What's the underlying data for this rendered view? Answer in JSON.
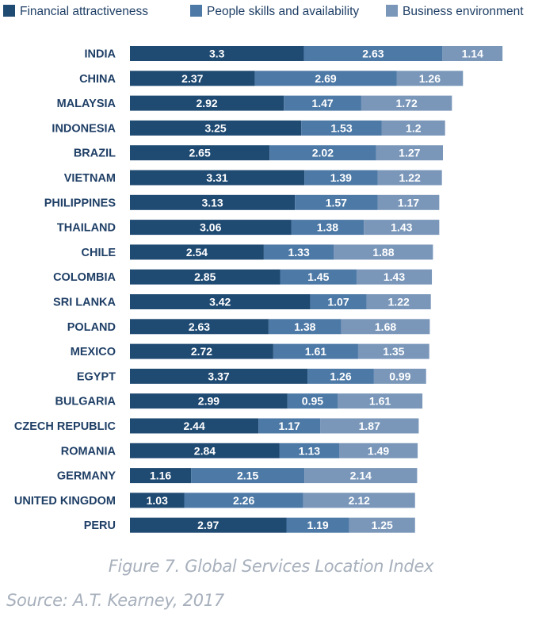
{
  "chart_data": {
    "type": "bar",
    "orientation": "horizontal",
    "stacked": true,
    "categories": [
      "INDIA",
      "CHINA",
      "MALAYSIA",
      "INDONESIA",
      "BRAZIL",
      "VIETNAM",
      "PHILIPPINES",
      "THAILAND",
      "CHILE",
      "COLOMBIA",
      "SRI LANKA",
      "POLAND",
      "MEXICO",
      "EGYPT",
      "BULGARIA",
      "CZECH REPUBLIC",
      "ROMANIA",
      "GERMANY",
      "UNITED KINGDOM",
      "PERU"
    ],
    "series": [
      {
        "name": "Financial attractiveness",
        "color": "#1f4a72",
        "values": [
          3.3,
          2.37,
          2.92,
          3.25,
          2.65,
          3.31,
          3.13,
          3.06,
          2.54,
          2.85,
          3.42,
          2.63,
          2.72,
          3.37,
          2.99,
          2.44,
          2.84,
          1.16,
          1.03,
          2.97
        ]
      },
      {
        "name": "People skills and availability",
        "color": "#4d79a6",
        "values": [
          2.63,
          2.69,
          1.47,
          1.53,
          2.02,
          1.39,
          1.57,
          1.38,
          1.33,
          1.45,
          1.07,
          1.38,
          1.61,
          1.26,
          0.95,
          1.17,
          1.13,
          2.15,
          2.26,
          1.19
        ]
      },
      {
        "name": "Business environment",
        "color": "#7a97ba",
        "values": [
          1.14,
          1.26,
          1.72,
          1.2,
          1.27,
          1.22,
          1.17,
          1.43,
          1.88,
          1.43,
          1.22,
          1.68,
          1.35,
          0.99,
          1.61,
          1.87,
          1.49,
          2.14,
          2.12,
          1.25
        ]
      }
    ],
    "title": "",
    "xlabel": "",
    "ylabel": "",
    "grid": false,
    "legend_placement": "top",
    "label_color": "#1f3f66"
  },
  "caption": {
    "figure": "Figure 7. Global Services Location Index",
    "source": "Source: A.T. Kearney, 2017"
  }
}
